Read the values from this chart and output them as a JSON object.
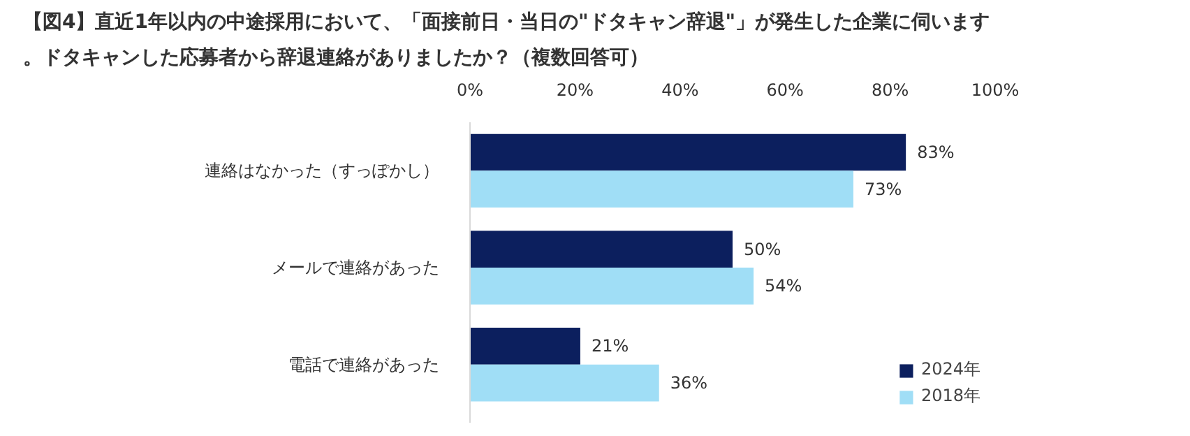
{
  "chart_data": {
    "type": "bar",
    "orientation": "horizontal",
    "title": "【図4】直近1年以内の中途採用において、「面接前日・当日の\"ドタキャン辞退\"」が発生した企業に伺います。ドタキャンした応募者から辞退連絡がありましたか？（複数回答可）",
    "categories": [
      "連絡はなかった（すっぽかし）",
      "メールで連絡があった",
      "電話で連絡があった"
    ],
    "series": [
      {
        "name": "2024年",
        "color": "#0c1f5e",
        "values": [
          83,
          50,
          21
        ],
        "value_labels": [
          "83%",
          "50%",
          "21%"
        ]
      },
      {
        "name": "2018年",
        "color": "#a0def6",
        "values": [
          73,
          54,
          36
        ],
        "value_labels": [
          "73%",
          "54%",
          "36%"
        ]
      }
    ],
    "xlim": [
      0,
      100
    ],
    "xticks": [
      {
        "value": 0,
        "label": "0%"
      },
      {
        "value": 20,
        "label": "20%"
      },
      {
        "value": 40,
        "label": "40%"
      },
      {
        "value": 60,
        "label": "60%"
      },
      {
        "value": 80,
        "label": "80%"
      },
      {
        "value": 100,
        "label": "100%"
      }
    ],
    "grid": false,
    "legend": "bottom right"
  }
}
